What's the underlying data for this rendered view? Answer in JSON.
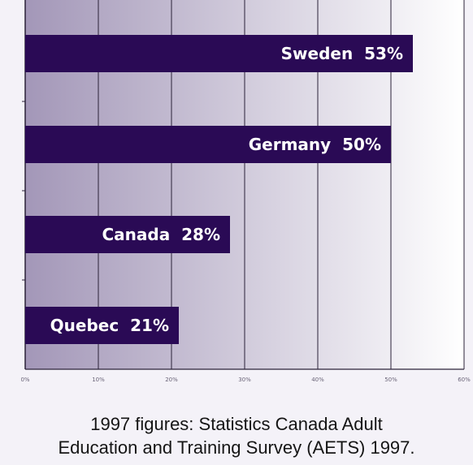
{
  "chart_data": {
    "type": "bar",
    "orientation": "horizontal",
    "categories": [
      "Sweden",
      "Germany",
      "Canada",
      "Quebec"
    ],
    "values": [
      53,
      50,
      28,
      21
    ],
    "bar_labels": [
      "Sweden  53%",
      "Germany  50%",
      "Canada  28%",
      "Quebec  21%"
    ],
    "xlim": [
      0,
      60
    ],
    "xticks": [
      "0%",
      "10%",
      "20%",
      "30%",
      "40%",
      "50%",
      "60%"
    ],
    "grid": true,
    "bar_color": "#2a0a55",
    "background_gradient": [
      "#ffffff",
      "#a397b8"
    ]
  },
  "caption": {
    "line1": "1997 figures: Statistics Canada Adult",
    "line2": "Education and Training Survey (AETS) 1997."
  }
}
